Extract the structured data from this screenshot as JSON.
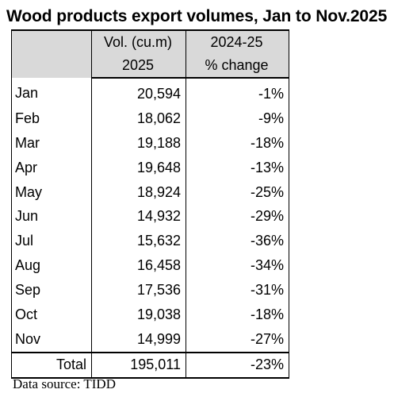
{
  "title": "Wood products export volumes, Jan to Nov.2025",
  "header": {
    "col2_line1": "Vol. (cu.m)",
    "col2_line2": "2025",
    "col3_line1": "2024-25",
    "col3_line2": "% change"
  },
  "rows": [
    {
      "month": "Jan",
      "volume": "20,594",
      "change": "-1%"
    },
    {
      "month": "Feb",
      "volume": "18,062",
      "change": "-9%"
    },
    {
      "month": "Mar",
      "volume": "19,188",
      "change": "-18%"
    },
    {
      "month": "Apr",
      "volume": "19,648",
      "change": "-13%"
    },
    {
      "month": "May",
      "volume": "18,924",
      "change": "-25%"
    },
    {
      "month": "Jun",
      "volume": "14,932",
      "change": "-29%"
    },
    {
      "month": "Jul",
      "volume": "15,632",
      "change": "-36%"
    },
    {
      "month": "Aug",
      "volume": "16,458",
      "change": "-34%"
    },
    {
      "month": "Sep",
      "volume": "17,536",
      "change": "-31%"
    },
    {
      "month": "Oct",
      "volume": "19,038",
      "change": "-18%"
    },
    {
      "month": "Nov",
      "volume": "14,999",
      "change": "-27%"
    }
  ],
  "total": {
    "label": "Total",
    "volume": "195,011",
    "change": "-23%"
  },
  "source": "Data source: TIDD",
  "colors": {
    "header_bg": "#d9d9d9",
    "border": "#000000"
  },
  "chart_data": {
    "type": "table",
    "title": "Wood products export volumes, Jan to Nov.2025",
    "columns": [
      "",
      "Vol. (cu.m) 2025",
      "2024-25 % change"
    ],
    "categories": [
      "Jan",
      "Feb",
      "Mar",
      "Apr",
      "May",
      "Jun",
      "Jul",
      "Aug",
      "Sep",
      "Oct",
      "Nov"
    ],
    "series": [
      {
        "name": "Vol. (cu.m) 2025",
        "values": [
          20594,
          18062,
          19188,
          19648,
          18924,
          14932,
          15632,
          16458,
          17536,
          19038,
          14999
        ]
      },
      {
        "name": "2024-25 % change",
        "values": [
          -1,
          -9,
          -18,
          -13,
          -25,
          -29,
          -36,
          -34,
          -31,
          -18,
          -27
        ]
      }
    ],
    "total": {
      "volume": 195011,
      "change": -23
    }
  }
}
